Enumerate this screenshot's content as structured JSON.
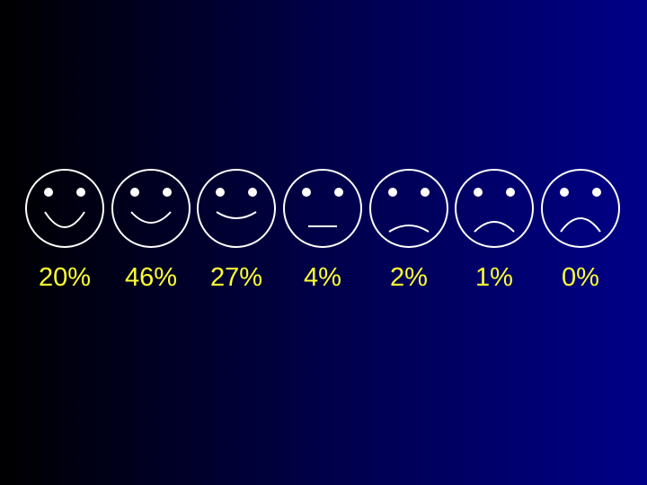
{
  "items": [
    {
      "label": "20%"
    },
    {
      "label": "46%"
    },
    {
      "label": "27%"
    },
    {
      "label": "4%"
    },
    {
      "label": "2%"
    },
    {
      "label": "1%"
    },
    {
      "label": "0%"
    }
  ]
}
